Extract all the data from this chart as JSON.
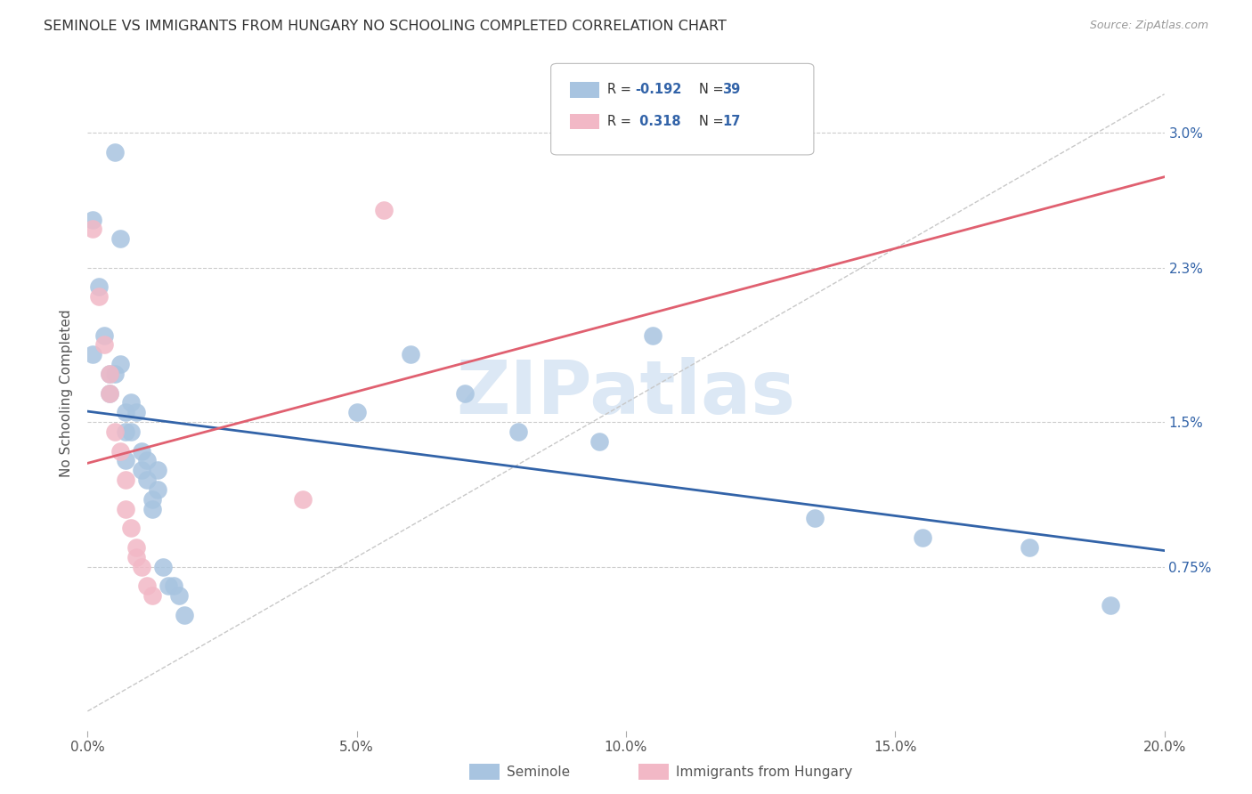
{
  "title": "SEMINOLE VS IMMIGRANTS FROM HUNGARY NO SCHOOLING COMPLETED CORRELATION CHART",
  "source": "Source: ZipAtlas.com",
  "ylabel": "No Schooling Completed",
  "yticks": [
    "0.75%",
    "1.5%",
    "2.3%",
    "3.0%"
  ],
  "ytick_vals": [
    0.0075,
    0.015,
    0.023,
    0.03
  ],
  "xlim": [
    0.0,
    0.2
  ],
  "ylim": [
    -0.001,
    0.034
  ],
  "legend_blue_r": "-0.192",
  "legend_blue_n": "39",
  "legend_pink_r": "0.318",
  "legend_pink_n": "17",
  "legend_label_blue": "Seminole",
  "legend_label_pink": "Immigrants from Hungary",
  "blue_color": "#a8c4e0",
  "pink_color": "#f2b8c6",
  "blue_line_color": "#3263a8",
  "pink_line_color": "#e06070",
  "dashed_line_color": "#c8c8c8",
  "watermark": "ZIPatlas",
  "watermark_color": "#dce8f5",
  "seminole_x": [
    0.005,
    0.001,
    0.002,
    0.001,
    0.006,
    0.003,
    0.004,
    0.004,
    0.005,
    0.006,
    0.007,
    0.007,
    0.007,
    0.008,
    0.009,
    0.008,
    0.01,
    0.01,
    0.011,
    0.011,
    0.012,
    0.012,
    0.013,
    0.013,
    0.014,
    0.015,
    0.016,
    0.017,
    0.018,
    0.05,
    0.06,
    0.07,
    0.08,
    0.095,
    0.105,
    0.135,
    0.155,
    0.175,
    0.19
  ],
  "seminole_y": [
    0.029,
    0.0255,
    0.022,
    0.0185,
    0.0245,
    0.0195,
    0.0175,
    0.0165,
    0.0175,
    0.018,
    0.0155,
    0.0145,
    0.013,
    0.016,
    0.0155,
    0.0145,
    0.0135,
    0.0125,
    0.013,
    0.012,
    0.011,
    0.0105,
    0.0125,
    0.0115,
    0.0075,
    0.0065,
    0.0065,
    0.006,
    0.005,
    0.0155,
    0.0185,
    0.0165,
    0.0145,
    0.014,
    0.0195,
    0.01,
    0.009,
    0.0085,
    0.0055
  ],
  "hungary_x": [
    0.001,
    0.002,
    0.003,
    0.004,
    0.004,
    0.005,
    0.006,
    0.007,
    0.007,
    0.008,
    0.009,
    0.009,
    0.01,
    0.011,
    0.012,
    0.04,
    0.055
  ],
  "hungary_y": [
    0.025,
    0.0215,
    0.019,
    0.0175,
    0.0165,
    0.0145,
    0.0135,
    0.012,
    0.0105,
    0.0095,
    0.008,
    0.0085,
    0.0075,
    0.0065,
    0.006,
    0.011,
    0.026
  ]
}
